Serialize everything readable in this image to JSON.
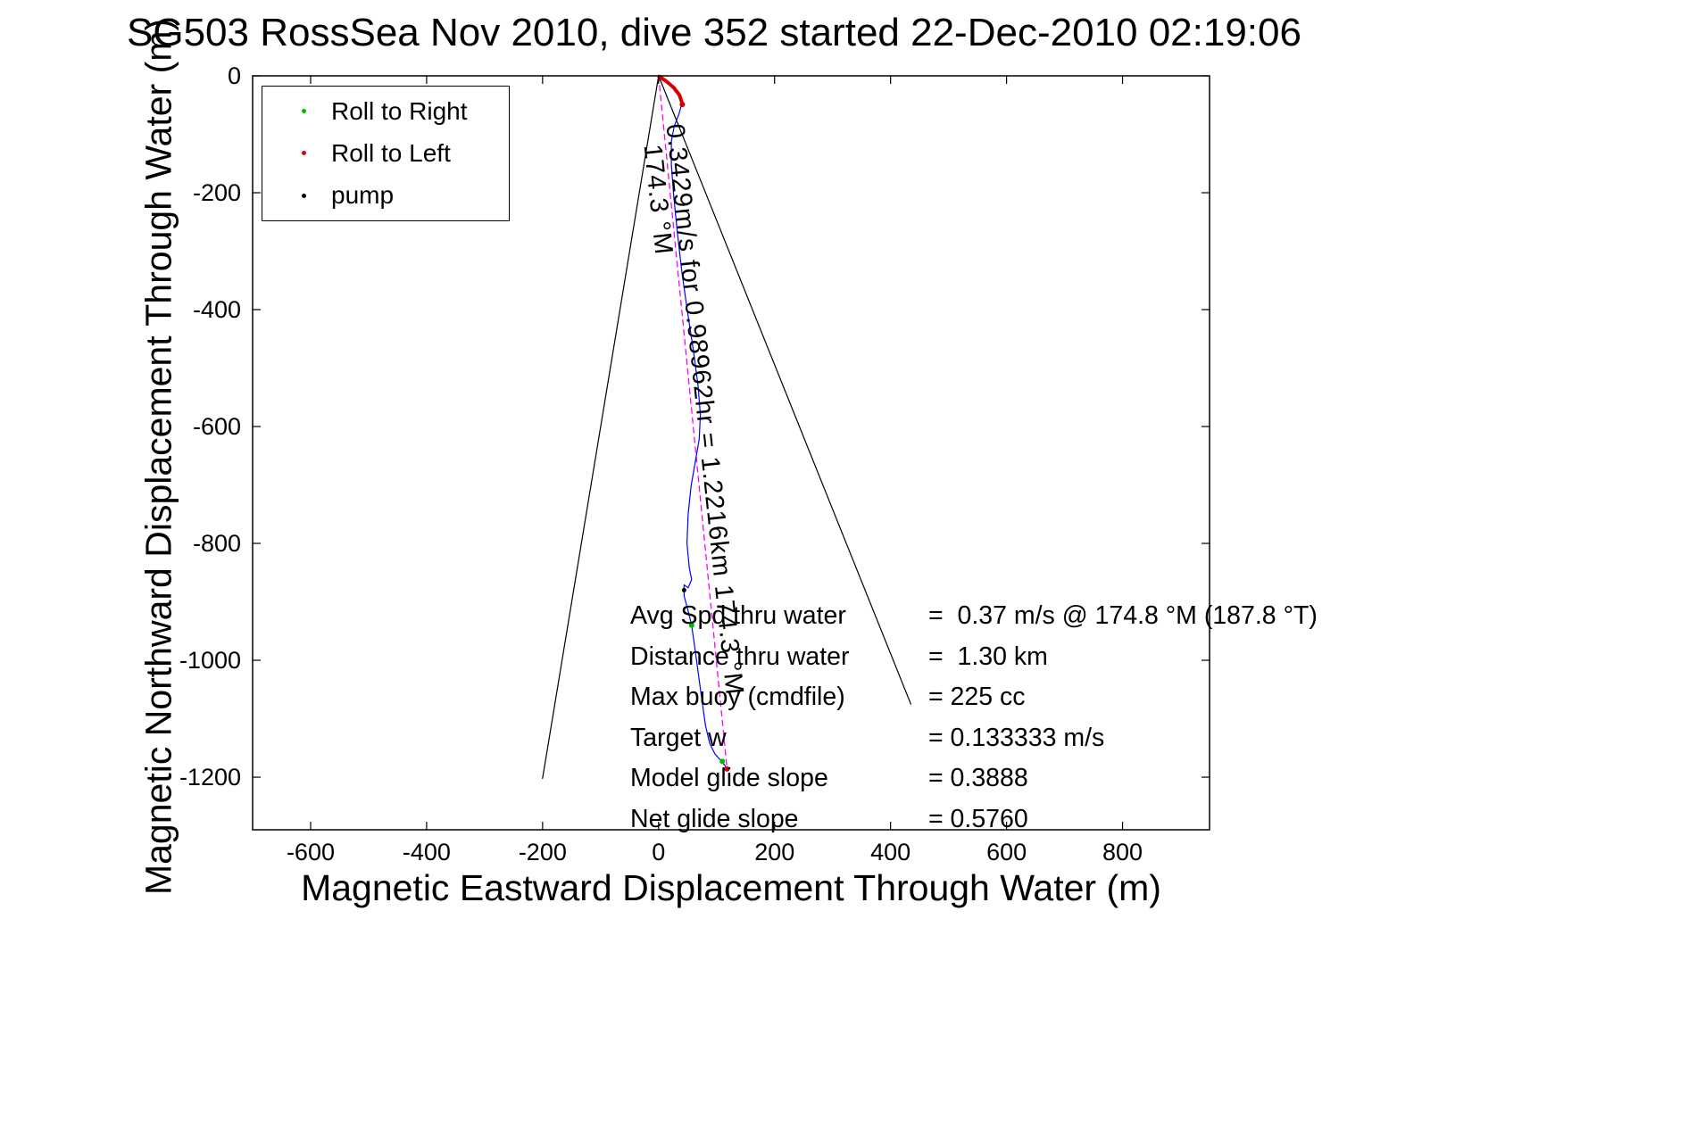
{
  "chart_data": {
    "type": "line",
    "title": "SG503 RossSea Nov 2010, dive 352 started 22-Dec-2010 02:19:06",
    "xlabel": "Magnetic Eastward Displacement Through Water (m)",
    "ylabel": "Magnetic Northward Displacement Through Water (m)",
    "xlim": [
      -700,
      950
    ],
    "ylim": [
      -1290,
      0
    ],
    "xticks": [
      -600,
      -400,
      -200,
      0,
      200,
      400,
      600,
      800
    ],
    "yticks": [
      0,
      -200,
      -400,
      -600,
      -800,
      -1000,
      -1200
    ],
    "grid": false,
    "legend_position": "northwest-inside",
    "series": [
      {
        "name": "bearing-line-left",
        "color": "#000000",
        "width": 1.2,
        "dash": false,
        "points": [
          [
            0,
            0
          ],
          [
            -200,
            -1202
          ]
        ]
      },
      {
        "name": "bearing-line-right",
        "color": "#000000",
        "width": 1.2,
        "dash": false,
        "points": [
          [
            0,
            0
          ],
          [
            435,
            -1075
          ]
        ]
      },
      {
        "name": "rhumb-line",
        "color": "#ff00ff",
        "width": 1.3,
        "dash": true,
        "points": [
          [
            0,
            0
          ],
          [
            118,
            -1186
          ]
        ]
      },
      {
        "name": "track-through-water",
        "color": "#0000ff",
        "width": 1.2,
        "dash": false,
        "points": [
          [
            0,
            0
          ],
          [
            12,
            -8
          ],
          [
            25,
            -19
          ],
          [
            35,
            -32
          ],
          [
            40,
            -48
          ],
          [
            35,
            -66
          ],
          [
            27,
            -86
          ],
          [
            22,
            -112
          ],
          [
            22,
            -152
          ],
          [
            26,
            -205
          ],
          [
            32,
            -265
          ],
          [
            40,
            -335
          ],
          [
            50,
            -405
          ],
          [
            60,
            -470
          ],
          [
            68,
            -530
          ],
          [
            72,
            -580
          ],
          [
            70,
            -622
          ],
          [
            63,
            -662
          ],
          [
            56,
            -702
          ],
          [
            51,
            -750
          ],
          [
            49,
            -800
          ],
          [
            53,
            -842
          ],
          [
            57,
            -862
          ],
          [
            51,
            -876
          ],
          [
            44,
            -871
          ],
          [
            44,
            -890
          ],
          [
            50,
            -912
          ],
          [
            57,
            -940
          ],
          [
            63,
            -982
          ],
          [
            69,
            -1026
          ],
          [
            75,
            -1070
          ],
          [
            81,
            -1112
          ],
          [
            88,
            -1142
          ],
          [
            97,
            -1160
          ],
          [
            107,
            -1171
          ],
          [
            115,
            -1181
          ],
          [
            118,
            -1186
          ]
        ]
      },
      {
        "name": "roll-left-start-arc",
        "color": "#d40000",
        "width": 4,
        "dash": false,
        "points": [
          [
            1,
            -1
          ],
          [
            13,
            -9
          ],
          [
            26,
            -20
          ],
          [
            36,
            -33
          ],
          [
            41,
            -48
          ]
        ]
      }
    ],
    "markers": [
      {
        "name": "roll-to-right",
        "color": "#00b800",
        "size": 3,
        "points": [
          [
            57,
            -940
          ],
          [
            110,
            -1173
          ]
        ]
      },
      {
        "name": "roll-to-left",
        "color": "#d40000",
        "size": 3,
        "points": [
          [
            41,
            -49
          ],
          [
            118,
            -1186
          ]
        ]
      },
      {
        "name": "pump",
        "color": "#000000",
        "size": 2.5,
        "points": [
          [
            44,
            -880
          ]
        ]
      }
    ],
    "annotations": [
      {
        "text": "174.3 °M",
        "x": -12,
        "y": -118,
        "rotation": 84
      },
      {
        "text": "0.3429m/s for 0.98962hr = 1.2216km  174.3 °M",
        "x": 27,
        "y": -82,
        "rotation": 84
      }
    ]
  },
  "legend": {
    "items": [
      {
        "label": "Roll to Right",
        "marker_color": "#00b800"
      },
      {
        "label": "Roll to Left",
        "marker_color": "#d40000"
      },
      {
        "label": "pump",
        "marker_color": "#000000"
      }
    ]
  },
  "stats": {
    "rows": [
      {
        "label": "Avg Spd thru water",
        "value": "=  0.37 m/s @ 174.8 °M (187.8 °T)"
      },
      {
        "label": "Distance thru water",
        "value": "=  1.30 km"
      },
      {
        "label": "Max buoy (cmdfile)",
        "value": "= 225 cc"
      },
      {
        "label": "Target w",
        "value": "= 0.133333 m/s"
      },
      {
        "label": "Model glide slope",
        "value": "= 0.3888"
      },
      {
        "label": "Net glide slope",
        "value": "= 0.5760"
      }
    ]
  }
}
